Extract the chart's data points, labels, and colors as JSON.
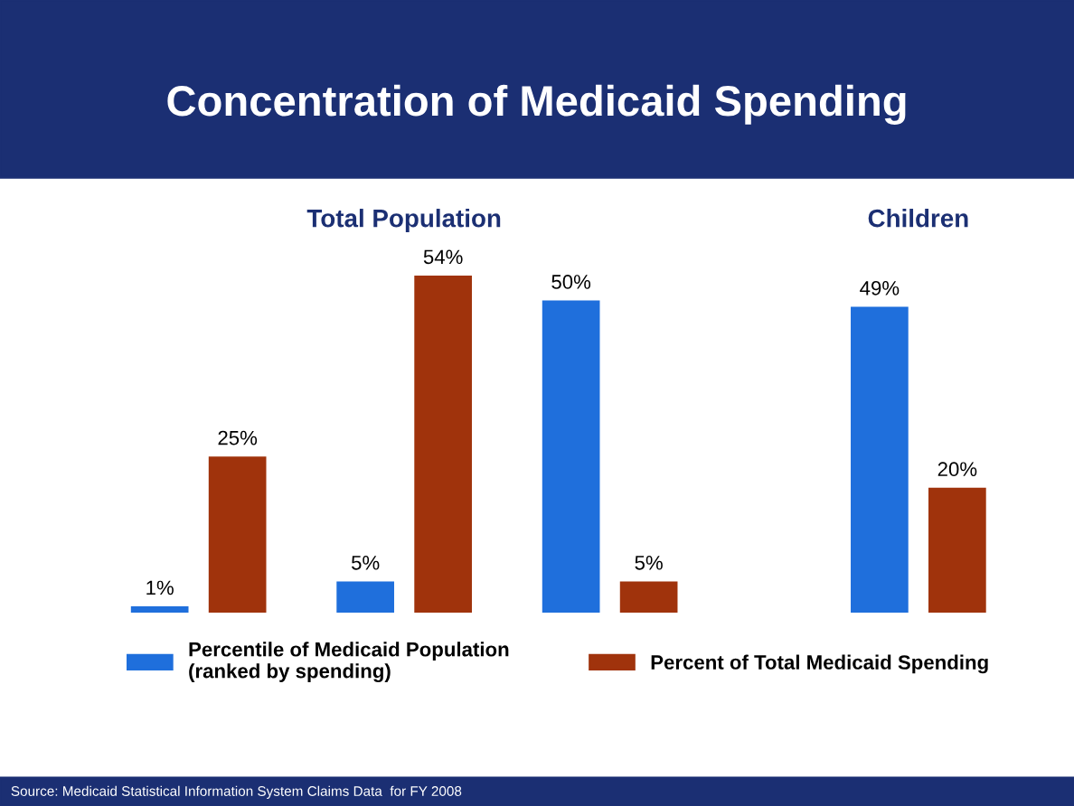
{
  "chart_data": {
    "type": "bar",
    "title": "Concentration of Medicaid Spending",
    "categories": [
      null,
      null,
      null,
      null
    ],
    "series": [
      {
        "name": "Percentile of Medicaid Population\n(ranked by spending)",
        "color": "#1f6fdc",
        "values": [
          1,
          5,
          50,
          49
        ],
        "value_labels": [
          "1%",
          "5%",
          "50%",
          "49%"
        ]
      },
      {
        "name": "Percent of Total Medicaid Spending",
        "color": "#a0330c",
        "values": [
          25,
          54,
          5,
          20
        ],
        "value_labels": [
          "25%",
          "54%",
          "5%",
          "20%"
        ]
      }
    ],
    "legend": "bottom",
    "grid": false,
    "annotations": [
      "Total Population",
      "Children",
      "Source: Medicaid Statistical Information System Claims Data  for FY 2008"
    ]
  }
}
